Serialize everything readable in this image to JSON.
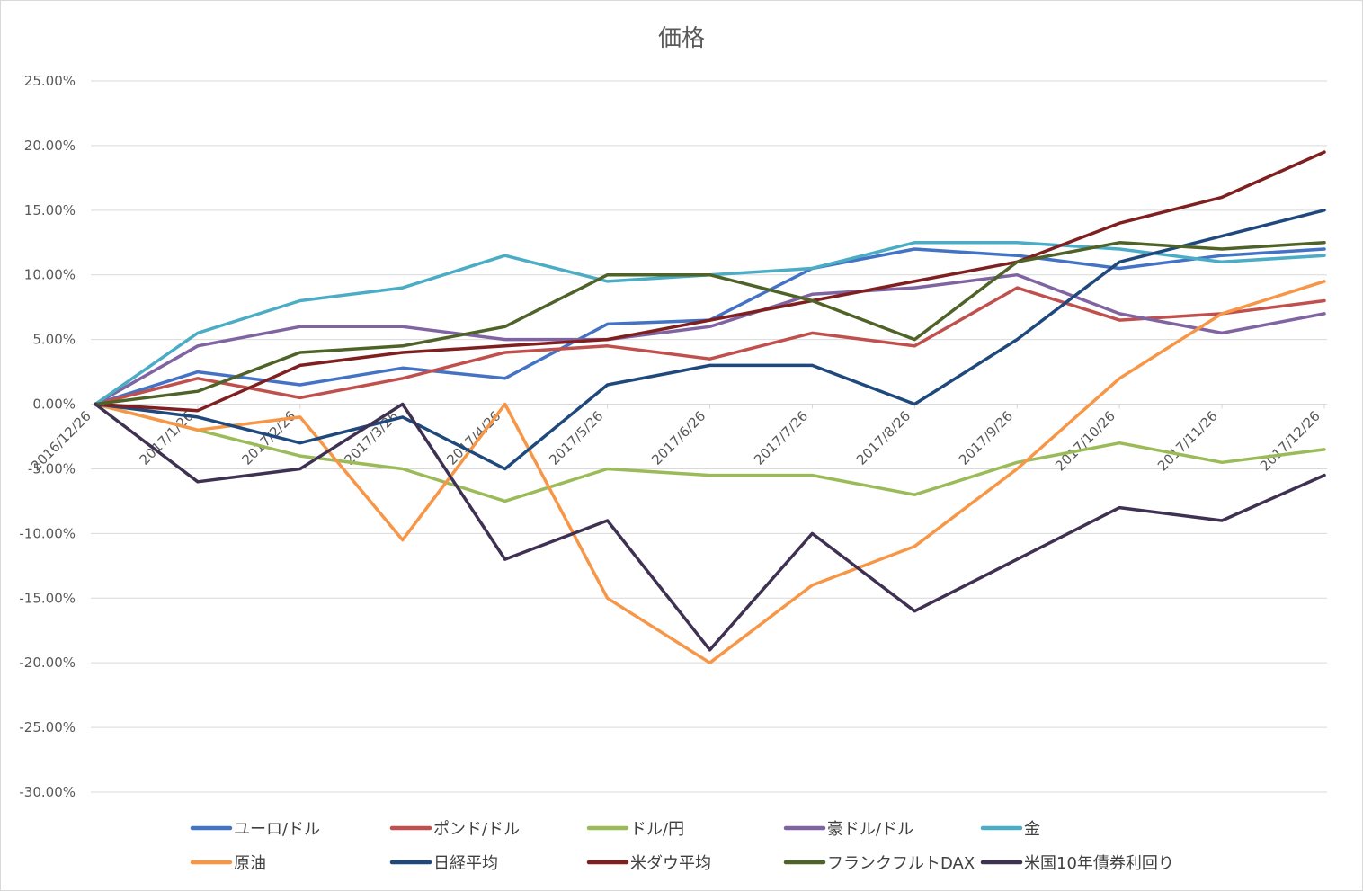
{
  "chart_data": {
    "type": "line",
    "title": "価格",
    "xlabel": "",
    "ylabel": "",
    "ylim": [
      -0.3,
      0.25
    ],
    "yticks": [
      "25.00%",
      "20.00%",
      "15.00%",
      "10.00%",
      "5.00%",
      "0.00%",
      "-5.00%",
      "-10.00%",
      "-15.00%",
      "-20.00%",
      "-25.00%",
      "-30.00%"
    ],
    "x": [
      "2016/12/26",
      "2017/1/26",
      "2017/2/26",
      "2017/3/26",
      "2017/4/26",
      "2017/5/26",
      "2017/6/26",
      "2017/7/26",
      "2017/8/26",
      "2017/9/26",
      "2017/10/26",
      "2017/11/26",
      "2017/12/26"
    ],
    "xticks": [
      "2016/12/26",
      "2017/1/26",
      "2017/2/26",
      "2017/3/26",
      "2017/4/26",
      "2017/5/26",
      "2017/6/26",
      "2017/7/26",
      "2017/8/26",
      "2017/9/26",
      "2017/10/26",
      "2017/11/26",
      "2017/12/26"
    ],
    "grid": true,
    "legend": "bottom",
    "series": [
      {
        "name": "ユーロ/ドル",
        "color": "#4472C4",
        "values": [
          0.0,
          0.025,
          0.015,
          0.028,
          0.02,
          0.062,
          0.065,
          0.105,
          0.12,
          0.115,
          0.105,
          0.115,
          0.12
        ]
      },
      {
        "name": "ポンド/ドル",
        "color": "#C0504D",
        "values": [
          0.0,
          0.02,
          0.005,
          0.02,
          0.04,
          0.045,
          0.035,
          0.055,
          0.045,
          0.09,
          0.065,
          0.07,
          0.08
        ]
      },
      {
        "name": "ドル/円",
        "color": "#9BBB59",
        "values": [
          0.0,
          -0.02,
          -0.04,
          -0.05,
          -0.075,
          -0.05,
          -0.055,
          -0.055,
          -0.07,
          -0.045,
          -0.03,
          -0.045,
          -0.035
        ]
      },
      {
        "name": "豪ドル/ドル",
        "color": "#8064A2",
        "values": [
          0.0,
          0.045,
          0.06,
          0.06,
          0.05,
          0.05,
          0.06,
          0.085,
          0.09,
          0.1,
          0.07,
          0.055,
          0.07
        ]
      },
      {
        "name": "金",
        "color": "#4BACC6",
        "values": [
          0.0,
          0.055,
          0.08,
          0.09,
          0.115,
          0.095,
          0.1,
          0.105,
          0.125,
          0.125,
          0.12,
          0.11,
          0.115
        ]
      },
      {
        "name": "原油",
        "color": "#F79646",
        "values": [
          0.0,
          -0.02,
          -0.01,
          -0.105,
          0.0,
          -0.15,
          -0.2,
          -0.14,
          -0.11,
          -0.05,
          0.02,
          0.07,
          0.095
        ]
      },
      {
        "name": "日経平均",
        "color": "#1F497D",
        "values": [
          0.0,
          -0.01,
          -0.03,
          -0.01,
          -0.05,
          0.015,
          0.03,
          0.03,
          0.0,
          0.05,
          0.11,
          0.13,
          0.15
        ]
      },
      {
        "name": "米ダウ平均",
        "color": "#7F1F1F",
        "values": [
          0.0,
          -0.005,
          0.03,
          0.04,
          0.045,
          0.05,
          0.065,
          0.08,
          0.095,
          0.11,
          0.14,
          0.16,
          0.195
        ]
      },
      {
        "name": "フランクフルトDAX",
        "color": "#4F6228",
        "values": [
          0.0,
          0.01,
          0.04,
          0.045,
          0.06,
          0.1,
          0.1,
          0.08,
          0.05,
          0.11,
          0.125,
          0.12,
          0.125
        ]
      },
      {
        "name": "米国10年債券利回り",
        "color": "#3F3151",
        "values": [
          0.0,
          -0.06,
          -0.05,
          0.0,
          -0.12,
          -0.09,
          -0.19,
          -0.1,
          -0.16,
          -0.12,
          -0.08,
          -0.09,
          -0.055
        ]
      }
    ]
  }
}
